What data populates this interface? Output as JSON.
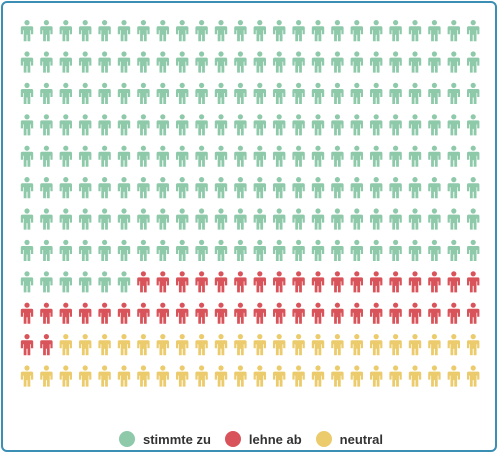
{
  "chart_data": {
    "type": "waffle",
    "title": "",
    "units_per_row": 24,
    "rows": 12,
    "series": [
      {
        "name": "stimmte zu",
        "count": 198,
        "color": "#8ec9aa"
      },
      {
        "name": "lehne ab",
        "count": 44,
        "color": "#d9545a"
      },
      {
        "name": "neutral",
        "count": 46,
        "color": "#ebcb6b"
      }
    ],
    "legend": {
      "placement": "bottom-center"
    }
  }
}
